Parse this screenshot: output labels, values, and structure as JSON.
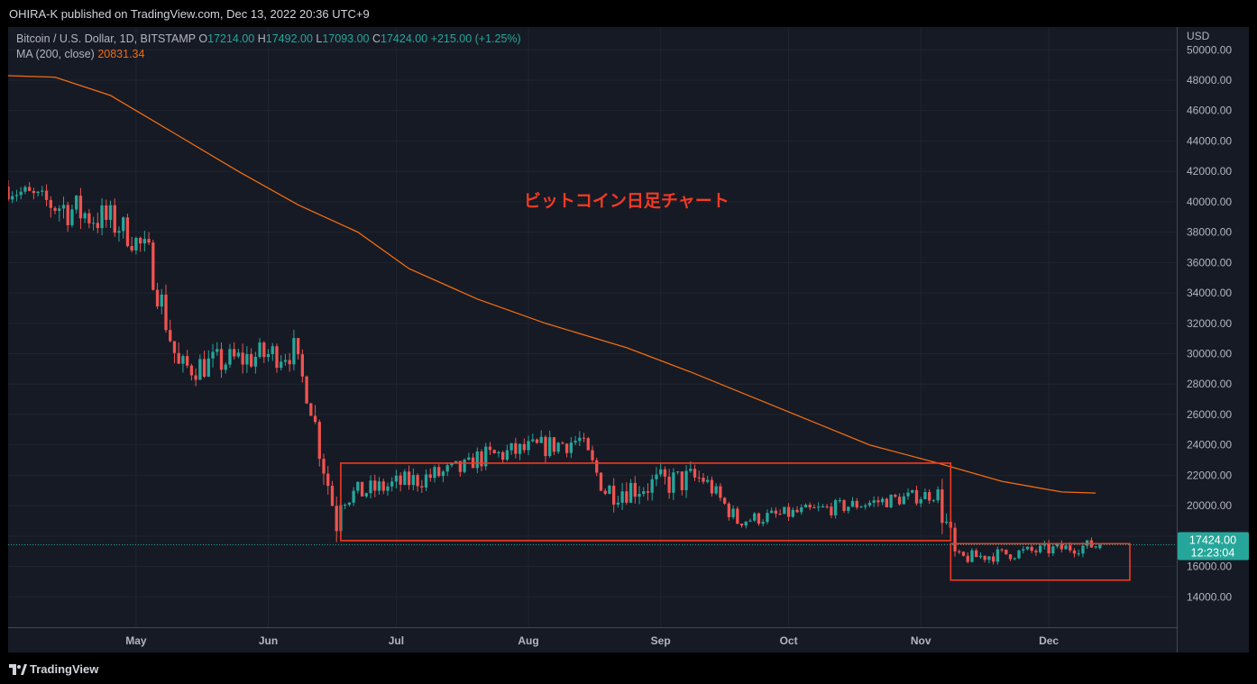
{
  "header": {
    "published": "OHIRA-K published on TradingView.com, Dec 13, 2022 20:36 UTC+9"
  },
  "legend": {
    "symbol": "Bitcoin / U.S. Dollar, 1D, BITSTAMP",
    "o_label": "O",
    "o_value": "17214.00",
    "h_label": "H",
    "h_value": "17492.00",
    "l_label": "L",
    "l_value": "17093.00",
    "c_label": "C",
    "c_value": "17424.00",
    "change": "+215.00 (+1.25%)",
    "ma_label": "MA (200, close)",
    "ma_value": "20831.34"
  },
  "price_axis": {
    "currency": "USD"
  },
  "last_price": {
    "price": "17424.00",
    "countdown": "12:23:04"
  },
  "footer": {
    "brand": "TradingView"
  },
  "colors": {
    "up": "#26a69a",
    "down": "#ef5350",
    "ma": "#f26d10",
    "annotation": "#f23a23",
    "background": "#161a25"
  },
  "chart_data": {
    "type": "candlestick",
    "title": "ビットコイン日足チャート",
    "y_ticks": [
      14000,
      16000,
      18000,
      20000,
      22000,
      24000,
      26000,
      28000,
      30000,
      32000,
      34000,
      36000,
      38000,
      40000,
      42000,
      44000,
      46000,
      48000,
      50000
    ],
    "ylim": [
      12000,
      51500
    ],
    "x_ticks": [
      {
        "label": "May",
        "date": "2022-05-01"
      },
      {
        "label": "Jun",
        "date": "2022-06-01"
      },
      {
        "label": "Jul",
        "date": "2022-07-01"
      },
      {
        "label": "Aug",
        "date": "2022-08-01"
      },
      {
        "label": "Sep",
        "date": "2022-09-01"
      },
      {
        "label": "Oct",
        "date": "2022-10-01"
      },
      {
        "label": "Nov",
        "date": "2022-11-01"
      },
      {
        "label": "Dec",
        "date": "2022-12-01"
      }
    ],
    "xlim": [
      "2022-04-01",
      "2022-12-31"
    ],
    "last_close": 17424,
    "ma_name": "MA (200, close)",
    "ma": [
      [
        "2022-04-01",
        48300
      ],
      [
        "2022-04-12",
        48200
      ],
      [
        "2022-04-25",
        47000
      ],
      [
        "2022-05-10",
        44500
      ],
      [
        "2022-05-25",
        42000
      ],
      [
        "2022-06-08",
        39800
      ],
      [
        "2022-06-22",
        38000
      ],
      [
        "2022-07-04",
        35600
      ],
      [
        "2022-07-20",
        33600
      ],
      [
        "2022-08-05",
        32000
      ],
      [
        "2022-08-24",
        30400
      ],
      [
        "2022-09-08",
        28800
      ],
      [
        "2022-09-22",
        27200
      ],
      [
        "2022-10-06",
        25600
      ],
      [
        "2022-10-20",
        24000
      ],
      [
        "2022-11-05",
        22800
      ],
      [
        "2022-11-20",
        21600
      ],
      [
        "2022-12-04",
        20900
      ],
      [
        "2022-12-12",
        20831
      ]
    ],
    "ohlc_segments": [
      {
        "from": "2022-04-01",
        "to": "2022-04-11",
        "open": 41000,
        "close": 40000,
        "range": 1500
      },
      {
        "from": "2022-04-11",
        "to": "2022-04-28",
        "open": 40000,
        "close": 38500,
        "range": 2500
      },
      {
        "from": "2022-04-28",
        "to": "2022-05-05",
        "open": 38500,
        "close": 36500,
        "range": 2000
      },
      {
        "from": "2022-05-05",
        "to": "2022-05-12",
        "open": 36500,
        "close": 29000,
        "range": 2500
      },
      {
        "from": "2022-05-12",
        "to": "2022-06-08",
        "open": 29000,
        "close": 30200,
        "range": 2000
      },
      {
        "from": "2022-06-08",
        "to": "2022-06-12",
        "open": 30200,
        "close": 26500,
        "range": 1500
      },
      {
        "from": "2022-06-12",
        "to": "2022-06-18",
        "open": 26500,
        "close": 19000,
        "range": 2500
      },
      {
        "from": "2022-06-18",
        "to": "2022-07-19",
        "open": 20500,
        "close": 22500,
        "range": 1500
      },
      {
        "from": "2022-07-19",
        "to": "2022-08-14",
        "open": 23000,
        "close": 24300,
        "range": 1500
      },
      {
        "from": "2022-08-14",
        "to": "2022-08-20",
        "open": 24300,
        "close": 21000,
        "range": 1500
      },
      {
        "from": "2022-08-20",
        "to": "2022-09-12",
        "open": 21000,
        "close": 21800,
        "range": 2000
      },
      {
        "from": "2022-09-12",
        "to": "2022-09-20",
        "open": 21800,
        "close": 19000,
        "range": 1200
      },
      {
        "from": "2022-09-20",
        "to": "2022-11-06",
        "open": 19000,
        "close": 20800,
        "range": 1000
      },
      {
        "from": "2022-11-06",
        "to": "2022-11-10",
        "open": 20800,
        "close": 16500,
        "range": 2500
      },
      {
        "from": "2022-11-10",
        "to": "2022-12-13",
        "open": 16500,
        "close": 17400,
        "range": 900
      }
    ],
    "annotations": [
      {
        "type": "rectangle",
        "from": "2022-06-18",
        "to": "2022-11-08",
        "low": 17700,
        "high": 22800
      },
      {
        "type": "rectangle",
        "from": "2022-11-08",
        "to": "2022-12-20",
        "low": 15100,
        "high": 17500
      }
    ]
  }
}
